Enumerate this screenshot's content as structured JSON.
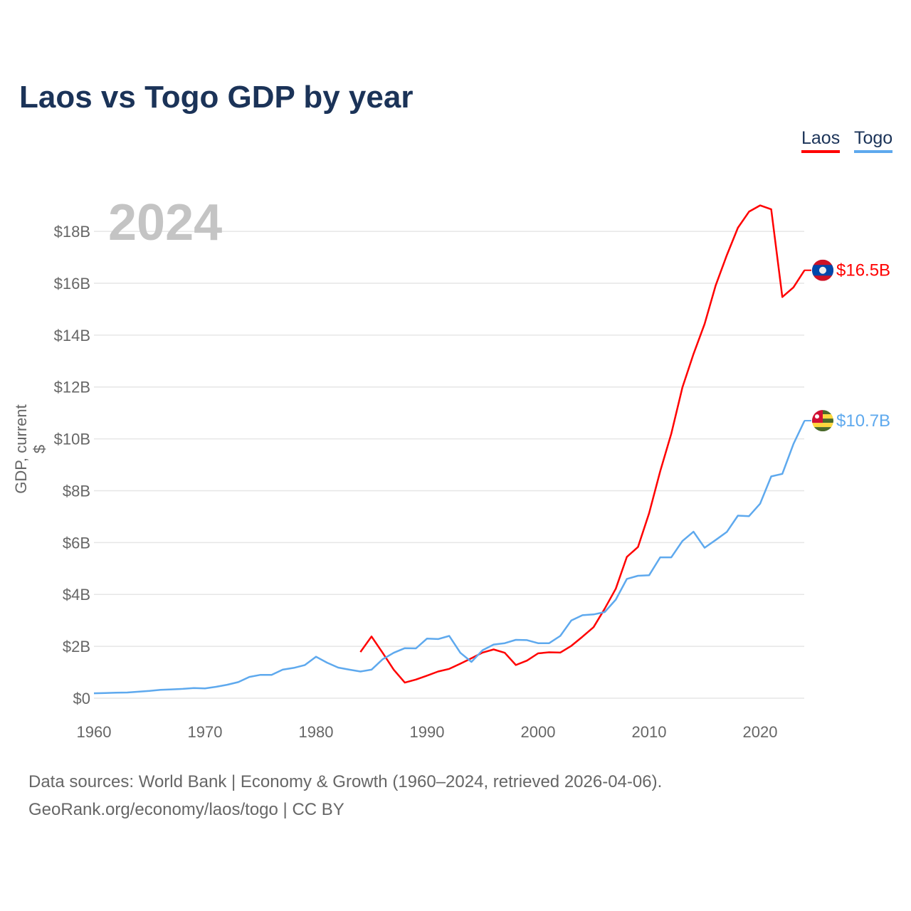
{
  "chart_data": {
    "type": "line",
    "title": "Laos vs Togo GDP by year",
    "year_badge": "2024",
    "xlabel": "",
    "ylabel": "GDP, current $",
    "xlim": [
      1960,
      2024
    ],
    "ylim": [
      0,
      19
    ],
    "x_ticks": [
      1960,
      1970,
      1980,
      1990,
      2000,
      2010,
      2020
    ],
    "y_ticks": [
      {
        "value": 0,
        "label": "$0"
      },
      {
        "value": 2,
        "label": "$2B"
      },
      {
        "value": 4,
        "label": "$4B"
      },
      {
        "value": 6,
        "label": "$6B"
      },
      {
        "value": 8,
        "label": "$8B"
      },
      {
        "value": 10,
        "label": "$10B"
      },
      {
        "value": 12,
        "label": "$12B"
      },
      {
        "value": 14,
        "label": "$14B"
      },
      {
        "value": 16,
        "label": "$16B"
      },
      {
        "value": 18,
        "label": "$18B"
      }
    ],
    "unit": "billion USD",
    "grid": true,
    "legend_placement": "top-right",
    "series": [
      {
        "name": "Laos",
        "color": "#ff0000",
        "flag": "laos-flag",
        "end_label": "$16.5B",
        "start_year": 1984,
        "values": [
          1.78,
          2.38,
          1.75,
          1.1,
          0.6,
          0.72,
          0.87,
          1.03,
          1.13,
          1.33,
          1.54,
          1.76,
          1.88,
          1.75,
          1.28,
          1.45,
          1.73,
          1.77,
          1.76,
          2.02,
          2.37,
          2.74,
          3.45,
          4.22,
          5.45,
          5.83,
          7.13,
          8.75,
          10.2,
          11.98,
          13.27,
          14.43,
          15.92,
          17.08,
          18.14,
          18.76,
          19.0,
          18.85,
          15.47,
          15.84,
          16.5
        ]
      },
      {
        "name": "Togo",
        "color": "#5ea9ee",
        "flag": "togo-flag",
        "end_label": "$10.7B",
        "start_year": 1960,
        "values": [
          0.19,
          0.2,
          0.21,
          0.22,
          0.25,
          0.28,
          0.32,
          0.34,
          0.36,
          0.39,
          0.38,
          0.44,
          0.52,
          0.62,
          0.82,
          0.9,
          0.9,
          1.1,
          1.17,
          1.28,
          1.6,
          1.37,
          1.18,
          1.1,
          1.03,
          1.1,
          1.5,
          1.75,
          1.93,
          1.92,
          2.3,
          2.28,
          2.4,
          1.75,
          1.4,
          1.85,
          2.07,
          2.12,
          2.25,
          2.24,
          2.12,
          2.12,
          2.4,
          3.0,
          3.2,
          3.23,
          3.32,
          3.8,
          4.6,
          4.72,
          4.74,
          5.43,
          5.43,
          6.06,
          6.42,
          5.8,
          6.1,
          6.41,
          7.04,
          7.02,
          7.5,
          8.55,
          8.65,
          9.8,
          10.7
        ]
      }
    ]
  },
  "footer": {
    "line1": "Data sources: World Bank | Economy & Growth (1960–2024, retrieved 2026-04-06).",
    "line2": "GeoRank.org/economy/laos/togo | CC BY"
  }
}
